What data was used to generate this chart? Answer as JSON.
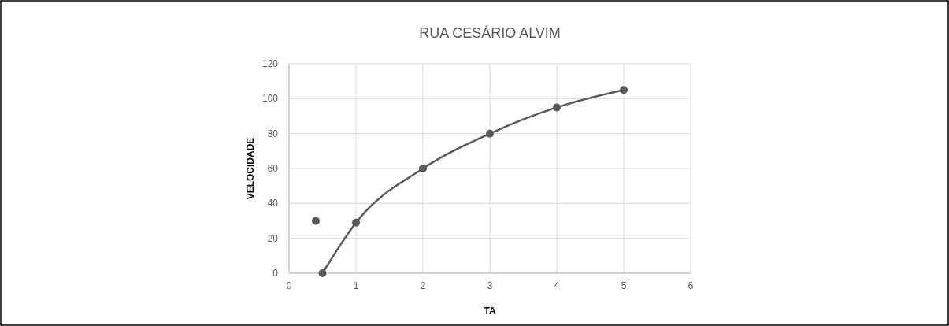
{
  "chart_data": {
    "type": "line",
    "title": "RUA CESÁRIO ALVIM",
    "xlabel": "TA",
    "ylabel": "VELOCIDADE",
    "xlim": [
      0,
      6
    ],
    "xticks": [
      0,
      1,
      2,
      3,
      4,
      5,
      6
    ],
    "ylim": [
      0,
      120
    ],
    "yticks": [
      0,
      20,
      40,
      60,
      80,
      100,
      120
    ],
    "grid": true,
    "marker": "circle",
    "series": [
      {
        "type": "scatter",
        "color": "#595959",
        "x": [
          0.4
        ],
        "values": [
          30
        ]
      },
      {
        "color": "#595959",
        "x": [
          0.5,
          1,
          2,
          3,
          4,
          5
        ],
        "values": [
          0,
          29,
          60,
          80,
          95,
          105
        ]
      }
    ]
  }
}
